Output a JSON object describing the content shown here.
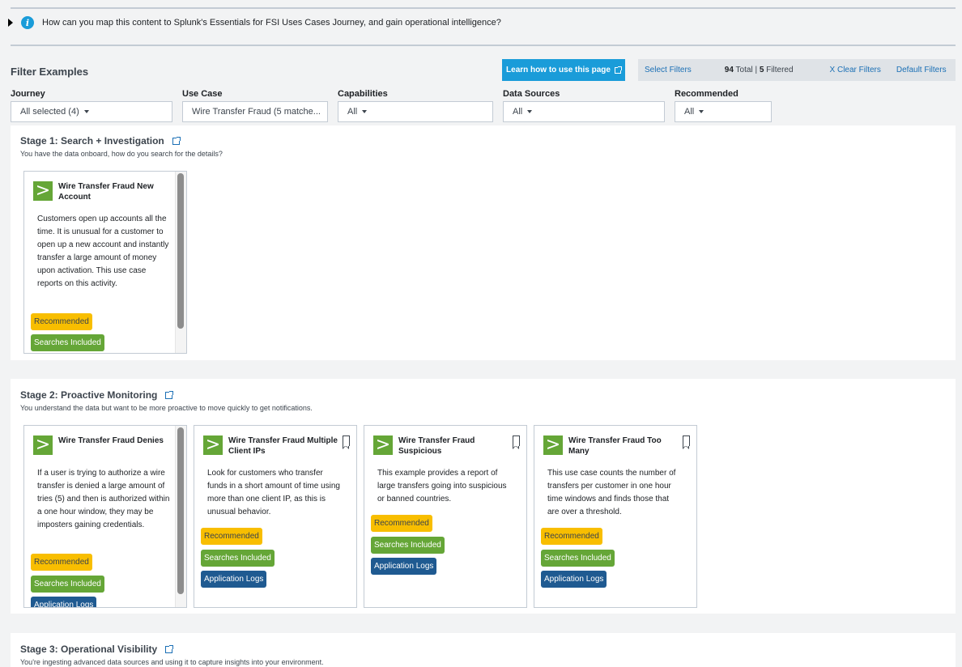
{
  "info": {
    "text": "How can you map this content to Splunk's Essentials for FSI Uses Cases Journey, and gain operational intelligence?"
  },
  "filters": {
    "title": "Filter Examples",
    "learn_button": "Learn how to use this page",
    "select_filters": "Select Filters",
    "total_count": "94",
    "total_label": "Total",
    "separator": "|",
    "filtered_count": "5",
    "filtered_label": "Filtered",
    "clear_filters": "X Clear Filters",
    "default_filters": "Default Filters",
    "fields": [
      {
        "label": "Journey",
        "value": "All selected (4)",
        "caret": true
      },
      {
        "label": "Use Case",
        "value": "Wire Transfer Fraud (5 matche...",
        "caret": false
      },
      {
        "label": "Capabilities",
        "value": "All",
        "caret": true
      },
      {
        "label": "Data Sources",
        "value": "All",
        "caret": true
      },
      {
        "label": "Recommended",
        "value": "All",
        "caret": true
      }
    ]
  },
  "stages": [
    {
      "title": "Stage 1: Search + Investigation",
      "subtitle": "You have the data onboard, how do you search for the details?",
      "cards": [
        {
          "title": "Wire Transfer Fraud New Account",
          "description": "Customers open up accounts all the time. It is unusual for a customer to open up a new account and instantly transfer a large amount of money upon activation. This use case reports on this activity.",
          "tags": [
            "Recommended",
            "Searches Included"
          ]
        }
      ]
    },
    {
      "title": "Stage 2: Proactive Monitoring",
      "subtitle": "You understand the data but want to be more proactive to move quickly to get notifications.",
      "cards": [
        {
          "title": "Wire Transfer Fraud Denies",
          "description": "If a user is trying to authorize a wire transfer is denied a large amount of tries (5) and then is authorized within a one hour window, they may be imposters gaining credentials.",
          "tags": [
            "Recommended",
            "Searches Included",
            "Application Logs"
          ]
        },
        {
          "title": "Wire Transfer Fraud Multiple Client IPs",
          "description": "Look for customers who transfer funds in a short amount of time using more than one client IP, as this is unusual behavior.",
          "tags": [
            "Recommended",
            "Searches Included",
            "Application Logs"
          ]
        },
        {
          "title": "Wire Transfer Fraud Suspicious",
          "description": "This example provides a report of large transfers going into suspicious or banned countries.",
          "tags": [
            "Recommended",
            "Searches Included",
            "Application Logs"
          ]
        },
        {
          "title": "Wire Transfer Fraud Too Many",
          "description": "This use case counts the number of transfers per customer in one hour time windows and finds those that are over a threshold.",
          "tags": [
            "Recommended",
            "Searches Included",
            "Application Logs"
          ]
        }
      ]
    },
    {
      "title": "Stage 3: Operational Visibility",
      "subtitle": "You're ingesting advanced data sources and using it to capture insights into your environment.",
      "cards": []
    }
  ],
  "colors": {
    "accent": "#1a9cd9",
    "link": "#1a6fb5",
    "recommended": "#f8be00",
    "searches_included": "#65a637",
    "application_logs": "#1f5a91"
  }
}
